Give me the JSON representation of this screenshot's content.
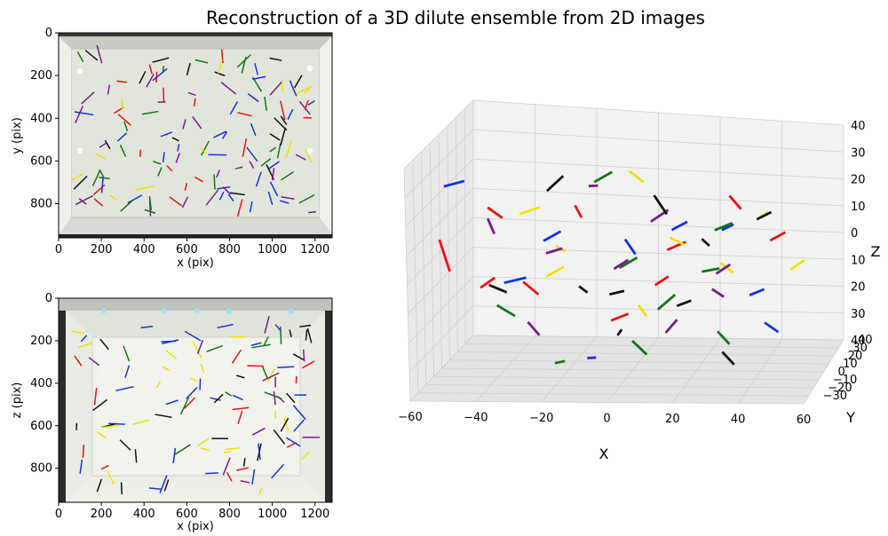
{
  "title": "Reconstruction of a 3D dilute ensemble from 2D images",
  "panels": {
    "top_left": {
      "xlabel": "x (pix)",
      "ylabel": "y (pix)",
      "xticks": [
        "0",
        "200",
        "400",
        "600",
        "800",
        "1000",
        "1200"
      ],
      "yticks": [
        "0",
        "200",
        "400",
        "600",
        "800"
      ]
    },
    "bottom_left": {
      "xlabel": "x (pix)",
      "ylabel": "z (pix)",
      "xticks": [
        "0",
        "200",
        "400",
        "600",
        "800",
        "1000",
        "1200"
      ],
      "yticks": [
        "0",
        "200",
        "400",
        "600",
        "800"
      ]
    },
    "right_3d": {
      "xlabel": "X",
      "ylabel": "Y",
      "zlabel": "Z",
      "xticks": [
        "−60",
        "−40",
        "−20",
        "0",
        "20",
        "40",
        "60"
      ],
      "yticks": [
        "40",
        "30",
        "20",
        "10",
        "0",
        "−10",
        "−20",
        "−30"
      ],
      "zticks": [
        "40",
        "30",
        "20",
        "10",
        "0",
        "10",
        "20",
        "30",
        "40"
      ]
    }
  },
  "colors": {
    "red": "#ee1111",
    "blue": "#1133dd",
    "green": "#117711",
    "yellow": "#f2e000",
    "purple": "#7a1a8c",
    "black": "#111111"
  },
  "chart_data": [
    {
      "type": "image",
      "panel": "top view photo",
      "xlabel": "x (pix)",
      "ylabel": "y (pix)",
      "xlim": [
        0,
        1280
      ],
      "ylim": [
        960,
        0
      ]
    },
    {
      "type": "image",
      "panel": "side view photo",
      "xlabel": "x (pix)",
      "ylabel": "z (pix)",
      "xlim": [
        0,
        1280
      ],
      "ylim": [
        960,
        0
      ]
    },
    {
      "type": "scatter",
      "panel": "3d reconstruction",
      "xlabel": "X",
      "ylabel": "Y",
      "zlabel": "Z",
      "xlim": [
        -60,
        60
      ],
      "ylim": [
        -40,
        40
      ],
      "zlim": [
        -40,
        40
      ],
      "grid": true,
      "series": [
        {
          "color": "red",
          "segments": [
            [
              [
                -55,
                -20,
                10
              ],
              [
                -53,
                -16,
                -2
              ]
            ],
            [
              [
                -50,
                10,
                -15
              ],
              [
                -46,
                12,
                -12
              ]
            ],
            [
              [
                -33,
                -5,
                -8
              ],
              [
                -28,
                -6,
                -12
              ]
            ],
            [
              [
                -20,
                10,
                15
              ],
              [
                -17,
                6,
                12
              ]
            ],
            [
              [
                -5,
                -8,
                -20
              ],
              [
                0,
                -6,
                -18
              ]
            ],
            [
              [
                8,
                -4,
                -8
              ],
              [
                12,
                -3,
                -5
              ]
            ],
            [
              [
                28,
                14,
                20
              ],
              [
                32,
                12,
                16
              ]
            ],
            [
              [
                45,
                -10,
                12
              ],
              [
                50,
                -12,
                16
              ]
            ],
            [
              [
                -40,
                -20,
                22
              ],
              [
                -36,
                -18,
                18
              ]
            ],
            [
              [
                15,
                -20,
                10
              ],
              [
                20,
                -16,
                12
              ]
            ]
          ]
        },
        {
          "color": "blue",
          "segments": [
            [
              [
                -52,
                -25,
                30
              ],
              [
                -46,
                -24,
                32
              ]
            ],
            [
              [
                -45,
                20,
                -16
              ],
              [
                -38,
                20,
                -14
              ]
            ],
            [
              [
                -10,
                -20,
                -30
              ],
              [
                -6,
                -26,
                -28
              ]
            ],
            [
              [
                18,
                -28,
                20
              ],
              [
                22,
                -24,
                22
              ]
            ],
            [
              [
                35,
                10,
                -15
              ],
              [
                40,
                8,
                -12
              ]
            ],
            [
              [
                -30,
                10,
                2
              ],
              [
                -25,
                12,
                5
              ]
            ],
            [
              [
                0,
                -10,
                10
              ],
              [
                4,
                -14,
                6
              ]
            ],
            [
              [
                30,
                -10,
                15
              ],
              [
                34,
                -12,
                18
              ]
            ],
            [
              [
                38,
                20,
                -28
              ],
              [
                42,
                22,
                -32
              ]
            ]
          ]
        },
        {
          "color": "green",
          "segments": [
            [
              [
                -40,
                -10,
                -15
              ],
              [
                -34,
                -12,
                -18
              ]
            ],
            [
              [
                -20,
                -20,
                -32
              ],
              [
                -16,
                -24,
                -30
              ]
            ],
            [
              [
                5,
                -25,
                -22
              ],
              [
                10,
                -28,
                -26
              ]
            ],
            [
              [
                18,
                20,
                -10
              ],
              [
                24,
                18,
                -8
              ]
            ],
            [
              [
                30,
                -18,
                -20
              ],
              [
                34,
                -20,
                -24
              ]
            ],
            [
              [
                -5,
                5,
                -5
              ],
              [
                0,
                8,
                -2
              ]
            ],
            [
              [
                10,
                -10,
                -15
              ],
              [
                15,
                -8,
                -10
              ]
            ],
            [
              [
                25,
                5,
                10
              ],
              [
                30,
                8,
                12
              ]
            ],
            [
              [
                -15,
                15,
                22
              ],
              [
                -10,
                18,
                25
              ]
            ]
          ]
        },
        {
          "color": "yellow",
          "segments": [
            [
              [
                -40,
                20,
                8
              ],
              [
                -34,
                22,
                10
              ]
            ],
            [
              [
                -25,
                -8,
                -5
              ],
              [
                -20,
                -6,
                -2
              ]
            ],
            [
              [
                -5,
                20,
                25
              ],
              [
                0,
                18,
                22
              ]
            ],
            [
              [
                10,
                10,
                5
              ],
              [
                14,
                12,
                2
              ]
            ],
            [
              [
                25,
                15,
                -5
              ],
              [
                28,
                20,
                -10
              ]
            ],
            [
              [
                40,
                -5,
                18
              ],
              [
                44,
                -8,
                22
              ]
            ],
            [
              [
                48,
                10,
                -5
              ],
              [
                52,
                12,
                -2
              ]
            ],
            [
              [
                -28,
                18,
                -2
              ],
              [
                -26,
                22,
                -5
              ]
            ],
            [
              [
                5,
                -15,
                -12
              ],
              [
                8,
                -18,
                -15
              ]
            ]
          ]
        },
        {
          "color": "purple",
          "segments": [
            [
              [
                -45,
                0,
                12
              ],
              [
                -42,
                -4,
                8
              ]
            ],
            [
              [
                -30,
                -12,
                -20
              ],
              [
                -26,
                -14,
                -24
              ]
            ],
            [
              [
                -20,
                -30,
                10
              ],
              [
                -15,
                -30,
                12
              ]
            ],
            [
              [
                -10,
                20,
                -10
              ],
              [
                -5,
                18,
                -6
              ]
            ],
            [
              [
                10,
                -20,
                20
              ],
              [
                15,
                -18,
                24
              ]
            ],
            [
              [
                25,
                0,
                -10
              ],
              [
                28,
                4,
                -14
              ]
            ],
            [
              [
                -10,
                -15,
                30
              ],
              [
                -6,
                -20,
                32
              ]
            ],
            [
              [
                15,
                -5,
                -20
              ],
              [
                12,
                -8,
                -24
              ]
            ],
            [
              [
                30,
                -20,
                2
              ],
              [
                34,
                -18,
                5
              ]
            ]
          ]
        },
        {
          "color": "black",
          "segments": [
            [
              [
                -40,
                -20,
                -5
              ],
              [
                -35,
                -18,
                -8
              ]
            ],
            [
              [
                -30,
                15,
                18
              ],
              [
                -26,
                20,
                22
              ]
            ],
            [
              [
                -10,
                25,
                -35
              ],
              [
                -8,
                22,
                -32
              ]
            ],
            [
              [
                5,
                10,
                20
              ],
              [
                10,
                5,
                15
              ]
            ],
            [
              [
                15,
                -5,
                -15
              ],
              [
                20,
                -8,
                -12
              ]
            ],
            [
              [
                30,
                -10,
                -30
              ],
              [
                34,
                -12,
                -34
              ]
            ],
            [
              [
                40,
                -5,
                18
              ],
              [
                45,
                -8,
                22
              ]
            ],
            [
              [
                -5,
                -10,
                -10
              ],
              [
                0,
                -12,
                -8
              ]
            ],
            [
              [
                20,
                10,
                5
              ],
              [
                22,
                12,
                2
              ]
            ],
            [
              [
                -20,
                15,
                -15
              ],
              [
                -18,
                18,
                -18
              ]
            ]
          ]
        }
      ]
    }
  ]
}
